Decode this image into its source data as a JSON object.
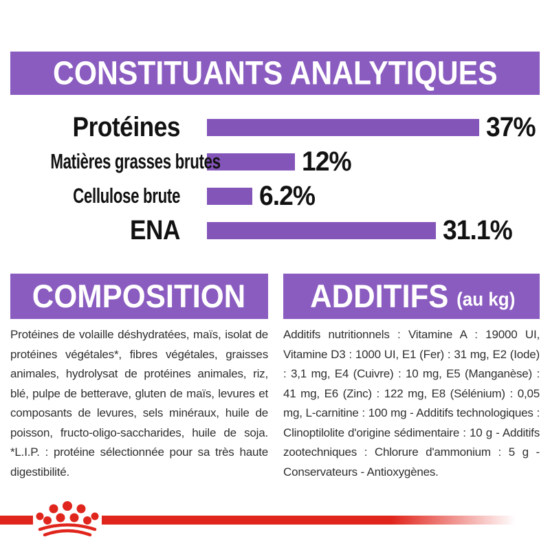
{
  "colors": {
    "purple": "#8a5cc0",
    "bar_purple": "#8455b9",
    "red": "#e0251c"
  },
  "header": {
    "title": "CONSTITUANTS ANALYTIQUES"
  },
  "chart_data": {
    "type": "bar",
    "orientation": "horizontal",
    "title": "CONSTITUANTS ANALYTIQUES",
    "categories": [
      "Protéines",
      "Matières grasses brutes",
      "Cellulose brute",
      "ENA"
    ],
    "values": [
      37,
      12,
      6.2,
      31.1
    ],
    "value_labels": [
      "37%",
      "12%",
      "6.2%",
      "31.1%"
    ],
    "unit": "%",
    "xlim": [
      0,
      37
    ],
    "bar_color": "#8455b9",
    "grid": false,
    "legend": false
  },
  "composition": {
    "title": "COMPOSITION",
    "body": "Protéines de volaille déshydratées, maïs, isolat de protéines végétales*, fibres végétales, graisses animales, hydrolysat de protéines animales, riz, blé, pulpe de betterave, gluten de maïs, levures et composants de levures, sels minéraux, huile de poisson, fructo-oligo-saccharides, huile de soja. *L.I.P. : protéine sélectionnée pour sa très haute digestibilité."
  },
  "additifs": {
    "title": "ADDITIFS",
    "title_suffix": "(au kg)",
    "body": "Additifs nutritionnels : Vitamine A : 19000 UI, Vitamine D3 : 1000 UI, E1 (Fer) : 31 mg, E2 (Iode) : 3,1 mg, E4 (Cuivre) : 10 mg, E5 (Manganèse) : 41 mg, E6 (Zinc) : 122 mg, E8 (Sélénium) : 0,05 mg, L-carnitine : 100 mg - Additifs technologiques : Clinoptilolite d'origine sédimentaire : 10 g - Additifs zootechniques : Chlorure d'ammonium : 5 g - Conservateurs - Antioxygènes."
  },
  "footer": {
    "logo": "royal-canin-crown"
  }
}
